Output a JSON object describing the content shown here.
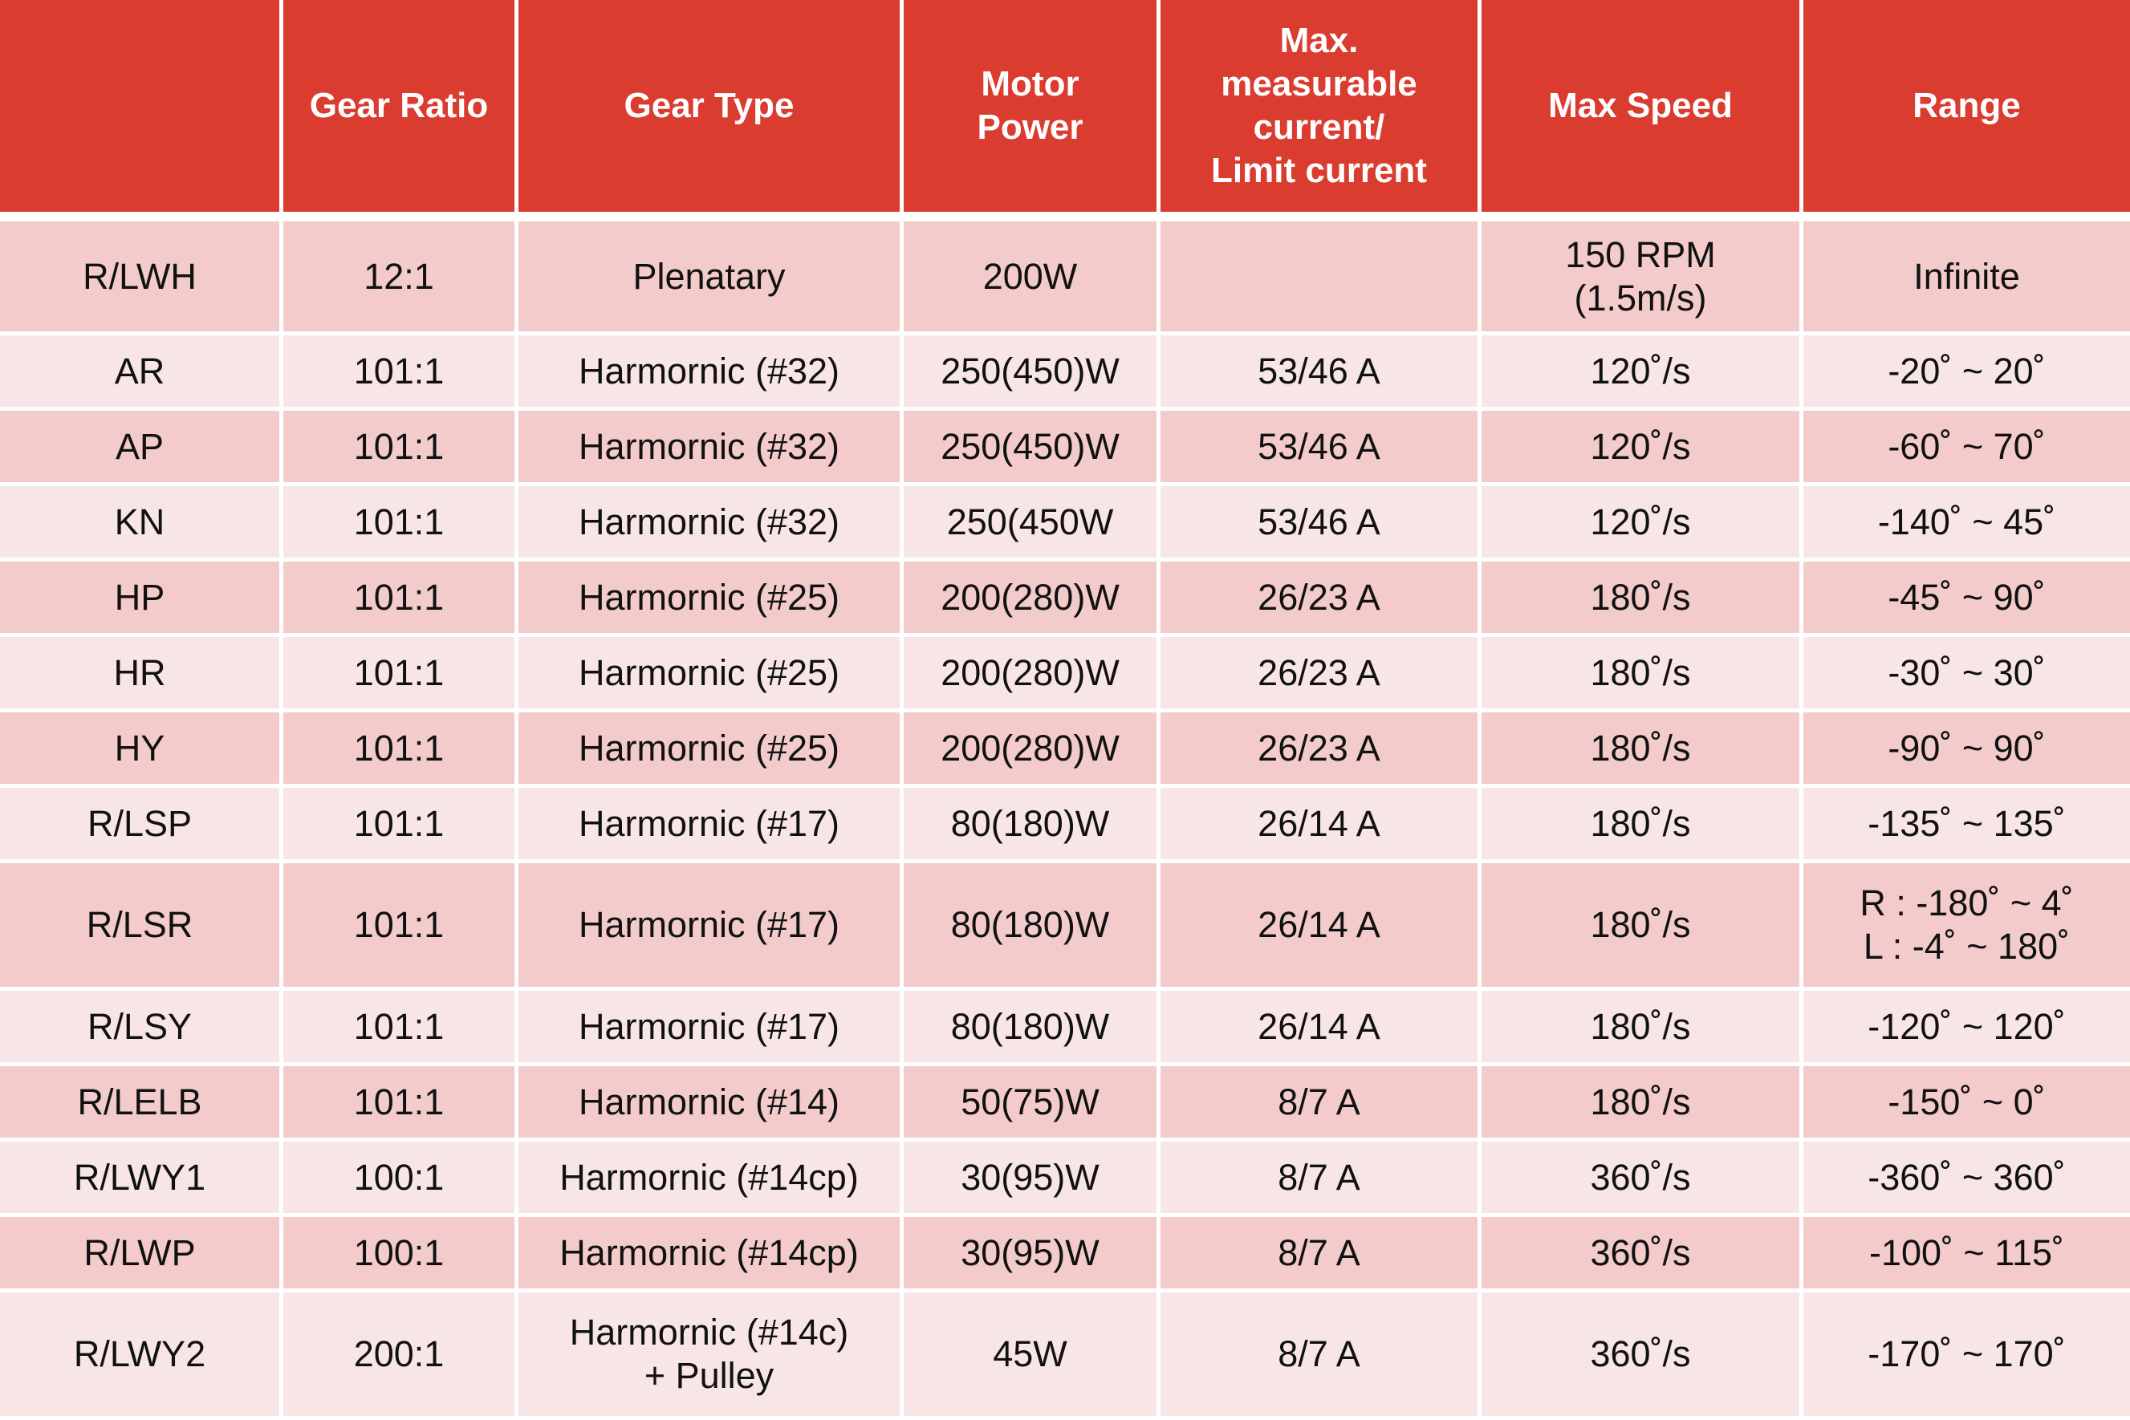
{
  "table": {
    "headers": [
      "",
      "Gear Ratio",
      "Gear Type",
      "Motor\nPower",
      "Max.\nmeasurable\ncurrent/\nLimit current",
      "Max Speed",
      "Range"
    ],
    "rows": [
      [
        "R/LWH",
        "12:1",
        "Plenatary",
        "200W",
        "",
        "150 RPM\n(1.5m/s)",
        "Infinite"
      ],
      [
        "AR",
        "101:1",
        "Harmornic (#32)",
        "250(450)W",
        "53/46 A",
        "120˚/s",
        "-20˚ ~ 20˚"
      ],
      [
        "AP",
        "101:1",
        "Harmornic (#32)",
        "250(450)W",
        "53/46 A",
        "120˚/s",
        "-60˚ ~ 70˚"
      ],
      [
        "KN",
        "101:1",
        "Harmornic (#32)",
        "250(450W",
        "53/46 A",
        "120˚/s",
        "-140˚ ~ 45˚"
      ],
      [
        "HP",
        "101:1",
        "Harmornic (#25)",
        "200(280)W",
        "26/23 A",
        "180˚/s",
        "-45˚ ~ 90˚"
      ],
      [
        "HR",
        "101:1",
        "Harmornic (#25)",
        "200(280)W",
        "26/23 A",
        "180˚/s",
        "-30˚ ~ 30˚"
      ],
      [
        "HY",
        "101:1",
        "Harmornic (#25)",
        "200(280)W",
        "26/23 A",
        "180˚/s",
        "-90˚ ~ 90˚"
      ],
      [
        "R/LSP",
        "101:1",
        "Harmornic (#17)",
        "80(180)W",
        "26/14 A",
        "180˚/s",
        "-135˚ ~ 135˚"
      ],
      [
        "R/LSR",
        "101:1",
        "Harmornic (#17)",
        "80(180)W",
        "26/14 A",
        "180˚/s",
        "R : -180˚ ~ 4˚\nL : -4˚ ~ 180˚"
      ],
      [
        "R/LSY",
        "101:1",
        "Harmornic (#17)",
        "80(180)W",
        "26/14 A",
        "180˚/s",
        "-120˚ ~ 120˚"
      ],
      [
        "R/LELB",
        "101:1",
        "Harmornic (#14)",
        "50(75)W",
        "8/7 A",
        "180˚/s",
        "-150˚ ~  0˚"
      ],
      [
        "R/LWY1",
        "100:1",
        "Harmornic (#14cp)",
        "30(95)W",
        "8/7 A",
        "360˚/s",
        "-360˚ ~ 360˚"
      ],
      [
        "R/LWP",
        "100:1",
        "Harmornic (#14cp)",
        "30(95)W",
        "8/7 A",
        "360˚/s",
        "-100˚ ~ 115˚"
      ],
      [
        "R/LWY2",
        "200:1",
        "Harmornic (#14c)\n+ Pulley",
        "45W",
        "8/7 A",
        "360˚/s",
        "-170˚ ~ 170˚"
      ]
    ]
  }
}
